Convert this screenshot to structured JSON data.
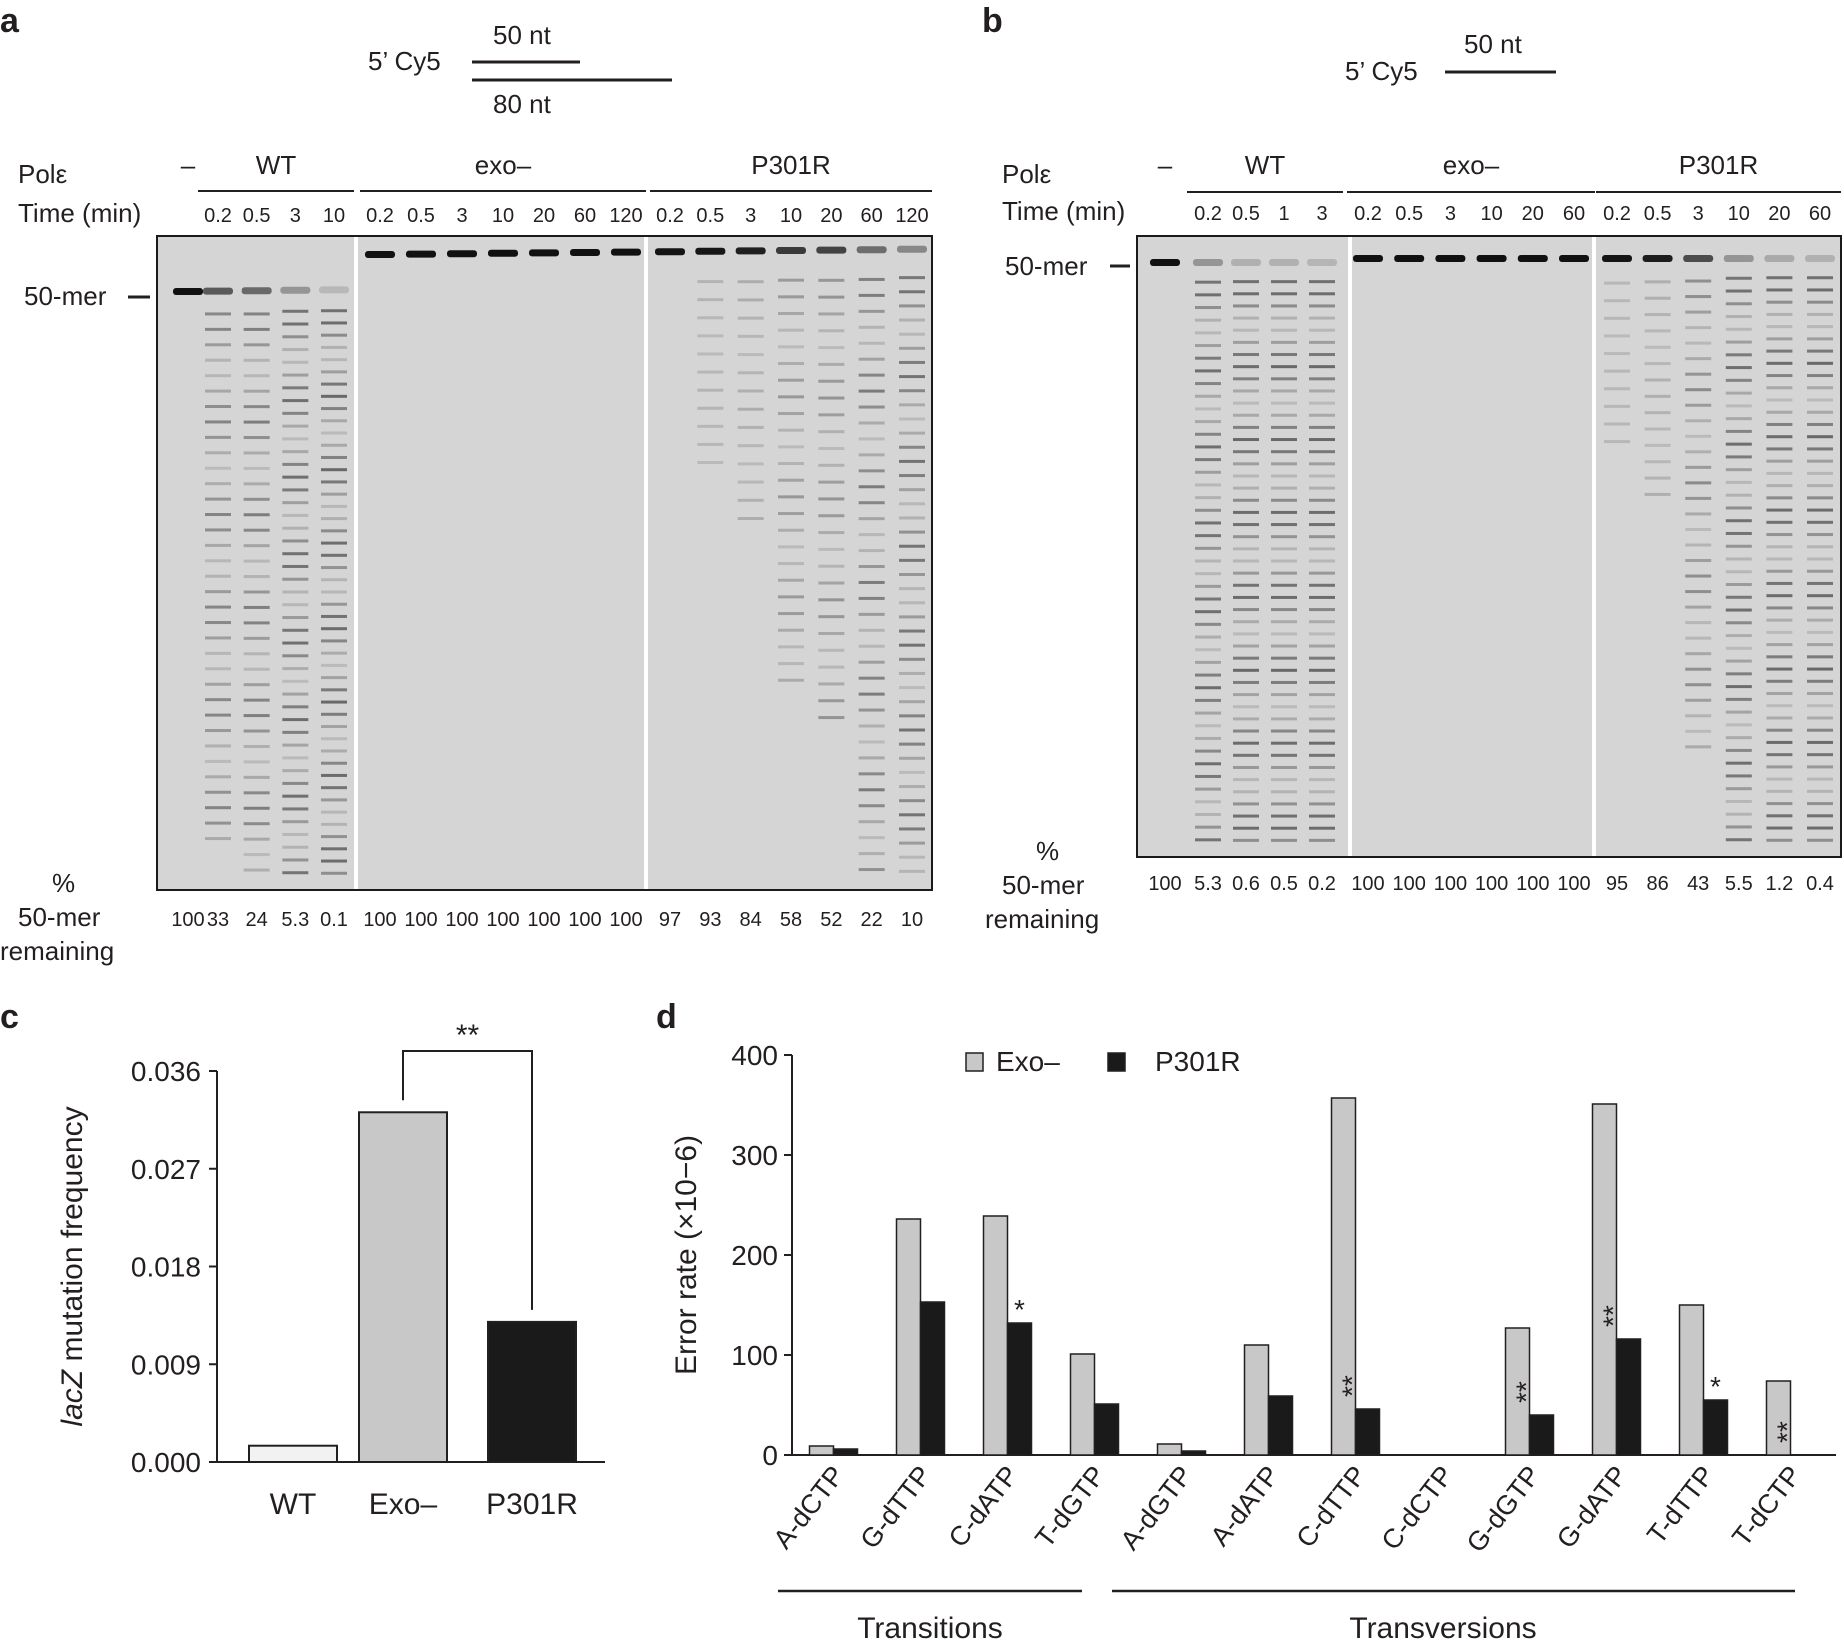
{
  "panel_a": {
    "letter": "a",
    "schematic": {
      "prefix": "5’ Cy5",
      "top": "50 nt",
      "bottom": "80 nt"
    },
    "row_pol": "Polε",
    "row_time": "Time (min)",
    "dash": "–",
    "groups": [
      {
        "label": "WT",
        "times": [
          "0.2",
          "0.5",
          "3",
          "10"
        ]
      },
      {
        "label": "exo–",
        "times": [
          "0.2",
          "0.5",
          "3",
          "10",
          "20",
          "60",
          "120"
        ]
      },
      {
        "label": "P301R",
        "times": [
          "0.2",
          "0.5",
          "3",
          "10",
          "20",
          "60",
          "120"
        ]
      }
    ],
    "marker": "50-mer",
    "pct_label": [
      "%",
      "50-mer",
      "remaining"
    ],
    "remaining": [
      "100",
      "33",
      "24",
      "5.3",
      "0.1",
      "100",
      "100",
      "100",
      "100",
      "100",
      "100",
      "100",
      "97",
      "93",
      "84",
      "58",
      "52",
      "22",
      "10"
    ]
  },
  "panel_b": {
    "letter": "b",
    "schematic": {
      "prefix": "5’ Cy5",
      "top": "50 nt"
    },
    "row_pol": "Polε",
    "row_time": "Time (min)",
    "dash": "–",
    "groups": [
      {
        "label": "WT",
        "times": [
          "0.2",
          "0.5",
          "1",
          "3"
        ]
      },
      {
        "label": "exo–",
        "times": [
          "0.2",
          "0.5",
          "3",
          "10",
          "20",
          "60"
        ]
      },
      {
        "label": "P301R",
        "times": [
          "0.2",
          "0.5",
          "3",
          "10",
          "20",
          "60"
        ]
      }
    ],
    "marker": "50-mer",
    "pct_label": [
      "%",
      "50-mer",
      "remaining"
    ],
    "remaining": [
      "100",
      "5.3",
      "0.6",
      "0.5",
      "0.2",
      "100",
      "100",
      "100",
      "100",
      "100",
      "100",
      "95",
      "86",
      "43",
      "5.5",
      "1.2",
      "0.4"
    ]
  },
  "panel_c": {
    "letter": "c"
  },
  "panel_d": {
    "letter": "d",
    "groups": [
      "Transitions",
      "Transversions"
    ]
  },
  "chart_data": [
    {
      "type": "bar",
      "categories": [
        "WT",
        "Exo–",
        "P301R"
      ],
      "values": [
        0.0015,
        0.0322,
        0.0129
      ],
      "colors": [
        "#f2f2f2",
        "#c8c8c8",
        "#1a1a1a"
      ],
      "ylabel_italic": "lacZ",
      "ylabel_rest": " mutation frequency",
      "ylim": [
        0,
        0.036
      ],
      "yticks": [
        "0.000",
        "0.009",
        "0.018",
        "0.027",
        "0.036"
      ],
      "significance": "**"
    },
    {
      "type": "bar",
      "categories": [
        "A-dCTP",
        "G-dTTP",
        "C-dATP",
        "T-dGTP",
        "A-dGTP",
        "A-dATP",
        "C-dTTP",
        "C-dCTP",
        "G-dGTP",
        "G-dATP",
        "T-dTTP",
        "T-dCTP"
      ],
      "series": [
        {
          "name": "Exo–",
          "color": "#c8c8c8",
          "values": [
            9,
            236,
            239,
            101,
            11,
            110,
            357,
            0,
            127,
            351,
            150,
            74
          ]
        },
        {
          "name": "P301R",
          "color": "#1a1a1a",
          "values": [
            6,
            153,
            132,
            51,
            4,
            59,
            46,
            0,
            40,
            116,
            55,
            0
          ]
        }
      ],
      "significance": [
        "",
        "",
        "*",
        "",
        "",
        "",
        "**",
        "",
        "**",
        "**",
        "*",
        "**"
      ],
      "ylabel": "Error rate (×10−6)",
      "ylim": [
        0,
        400
      ],
      "yticks": [
        "0",
        "100",
        "200",
        "300",
        "400"
      ],
      "legend_position": "top"
    }
  ]
}
